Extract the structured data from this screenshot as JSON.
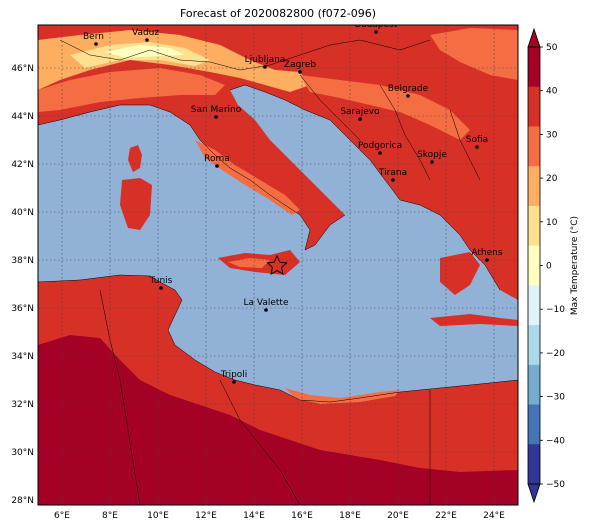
{
  "title": "Forecast of 2020082800 (f072-096)",
  "colorbar": {
    "label": "Max Temperature (°C)",
    "ticks": [
      "50",
      "40",
      "30",
      "20",
      "10",
      "0",
      "−10",
      "−20",
      "−30",
      "−40",
      "−50"
    ],
    "colors": [
      "#a50026",
      "#d73027",
      "#f46d43",
      "#fdae61",
      "#fee090",
      "#ffffbf",
      "#e0f3f8",
      "#abd9e9",
      "#74add1",
      "#4575b4",
      "#313695"
    ]
  },
  "axes": {
    "lon_labels": [
      "6°E",
      "8°E",
      "10°E",
      "12°E",
      "14°E",
      "16°E",
      "18°E",
      "20°E",
      "22°E",
      "24°E"
    ],
    "lat_labels": [
      "46°N",
      "44°N",
      "42°N",
      "40°N",
      "38°N",
      "36°N",
      "34°N",
      "32°N",
      "30°N",
      "28°N"
    ]
  },
  "cities": [
    {
      "name": "Bern"
    },
    {
      "name": "Vaduz"
    },
    {
      "name": "Budapest"
    },
    {
      "name": "Ljubljana"
    },
    {
      "name": "Zagreb"
    },
    {
      "name": "Belgrade"
    },
    {
      "name": "San Marino"
    },
    {
      "name": "Sarajevo"
    },
    {
      "name": "Sofia"
    },
    {
      "name": "Podgorica"
    },
    {
      "name": "Skopje"
    },
    {
      "name": "Roma"
    },
    {
      "name": "Tirana"
    },
    {
      "name": "Athens"
    },
    {
      "name": "Tunis"
    },
    {
      "name": "La Valette"
    },
    {
      "name": "Tripoli"
    }
  ],
  "marker": {
    "symbol": "star"
  }
}
